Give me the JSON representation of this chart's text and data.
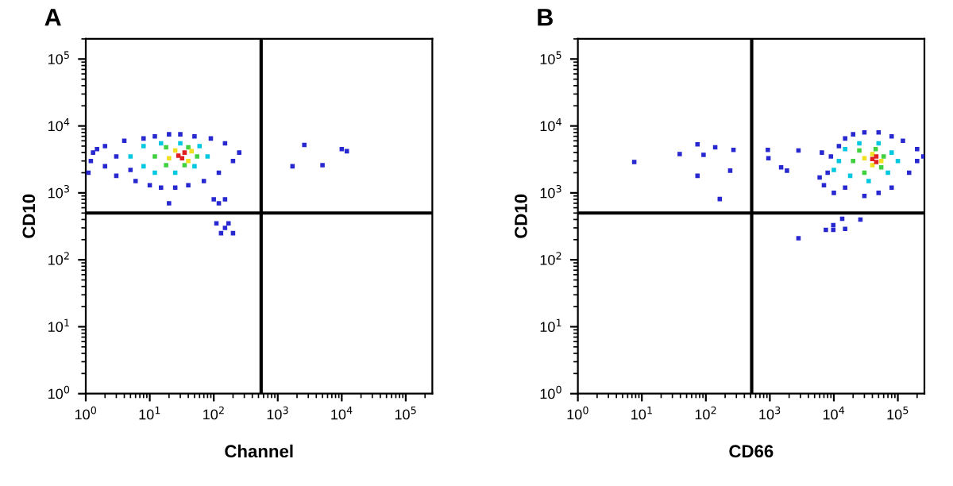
{
  "chart_data": [
    {
      "type": "scatter",
      "title": "A",
      "xlabel": "Channel",
      "ylabel": "CD10",
      "log": "xy",
      "marker": "square",
      "grid": false,
      "legend": false,
      "xlim": [
        1,
        260000
      ],
      "ylim": [
        1,
        200000
      ],
      "xticks": [
        {
          "value": 1,
          "label": "10$^{0}$"
        },
        {
          "value": 10,
          "label": "10$^{1}$"
        },
        {
          "value": 100,
          "label": "10$^{2}$"
        },
        {
          "value": 1000,
          "label": "10$^{3}$"
        },
        {
          "value": 10000,
          "label": "10$^{4}$"
        },
        {
          "value": 100000,
          "label": "10$^{5}$"
        }
      ],
      "yticks": [
        {
          "value": 1,
          "label": "10$^{0}$"
        },
        {
          "value": 10,
          "label": "10$^{1}$"
        },
        {
          "value": 100,
          "label": "10$^{2}$"
        },
        {
          "value": 1000,
          "label": "10$^{3}$"
        },
        {
          "value": 10000,
          "label": "10$^{4}$"
        },
        {
          "value": 100000,
          "label": "10$^{5}$"
        }
      ],
      "ref_lines": [
        {
          "axis": "x",
          "value": 550,
          "color": "#000000"
        },
        {
          "axis": "y",
          "value": 500,
          "color": "#000000"
        }
      ],
      "series": [
        {
          "color": "#2828d0",
          "x": [
            1.2,
            1.5,
            2,
            2,
            3,
            3,
            4,
            5,
            6,
            8,
            10,
            12,
            15,
            20,
            25,
            30,
            40,
            50,
            70,
            90,
            120,
            150,
            200,
            250,
            100,
            120,
            150,
            110,
            130,
            150,
            200,
            170,
            20,
            1.1,
            1.3,
            1700,
            2600,
            5000,
            10000,
            12000
          ],
          "values": [
            3000,
            4500,
            2500,
            5000,
            3500,
            1800,
            6000,
            2200,
            1500,
            6500,
            1300,
            7000,
            1200,
            7500,
            1200,
            7500,
            1300,
            7000,
            1500,
            6500,
            2000,
            5500,
            3000,
            4000,
            800,
            700,
            800,
            350,
            250,
            300,
            250,
            350,
            700,
            2000,
            4000,
            2500,
            5200,
            2600,
            4500,
            4200
          ]
        },
        {
          "color": "#00c8e0",
          "x": [
            5,
            8,
            8,
            12,
            15,
            25,
            30,
            50,
            60,
            80
          ],
          "values": [
            3500,
            2500,
            5000,
            2000,
            5500,
            2000,
            5500,
            2500,
            5000,
            3500
          ]
        },
        {
          "color": "#40d040",
          "x": [
            12,
            18,
            18,
            35,
            40,
            55
          ],
          "values": [
            3500,
            2600,
            4800,
            2600,
            4800,
            3500
          ]
        },
        {
          "color": "#f0e020",
          "x": [
            20,
            25,
            40,
            45
          ],
          "values": [
            3300,
            4300,
            3000,
            4200
          ]
        },
        {
          "color": "#e02020",
          "x": [
            28,
            35,
            32
          ],
          "values": [
            3600,
            4000,
            3300
          ]
        }
      ]
    },
    {
      "type": "scatter",
      "title": "B",
      "xlabel": "CD66",
      "ylabel": "CD10",
      "log": "xy",
      "marker": "square",
      "grid": false,
      "legend": false,
      "xlim": [
        1,
        260000
      ],
      "ylim": [
        1,
        200000
      ],
      "xticks": [
        {
          "value": 1,
          "label": "10$^{0}$"
        },
        {
          "value": 10,
          "label": "10$^{1}$"
        },
        {
          "value": 100,
          "label": "10$^{2}$"
        },
        {
          "value": 1000,
          "label": "10$^{3}$"
        },
        {
          "value": 10000,
          "label": "10$^{4}$"
        },
        {
          "value": 100000,
          "label": "10$^{5}$"
        }
      ],
      "yticks": [
        {
          "value": 1,
          "label": "10$^{0}$"
        },
        {
          "value": 10,
          "label": "10$^{1}$"
        },
        {
          "value": 100,
          "label": "10$^{2}$"
        },
        {
          "value": 1000,
          "label": "10$^{3}$"
        },
        {
          "value": 10000,
          "label": "10$^{4}$"
        },
        {
          "value": 100000,
          "label": "10$^{5}$"
        }
      ],
      "ref_lines": [
        {
          "axis": "x",
          "value": 520,
          "color": "#000000"
        },
        {
          "axis": "y",
          "value": 500,
          "color": "#000000"
        }
      ],
      "series": [
        {
          "color": "#2828d0",
          "x": [
            8000,
            7000,
            9000,
            10000,
            12000,
            15000,
            15000,
            20000,
            30000,
            30000,
            50000,
            50000,
            80000,
            80000,
            120000,
            150000,
            200000,
            200000,
            250000,
            6000,
            6500,
            7.6,
            39,
            74,
            74,
            92,
            140,
            240,
            270,
            165,
            930,
            950,
            1500,
            1850,
            2800,
            2800,
            7500,
            9800,
            15000,
            26000,
            13500,
            9800
          ],
          "values": [
            2000,
            1300,
            3500,
            1000,
            5000,
            6500,
            1200,
            7500,
            8000,
            900,
            8000,
            1000,
            7000,
            1200,
            6000,
            2000,
            4500,
            3000,
            3500,
            1700,
            4000,
            2900,
            3800,
            5300,
            1800,
            3700,
            4800,
            2150,
            4400,
            810,
            4400,
            3300,
            2400,
            2150,
            4300,
            210,
            280,
            330,
            290,
            400,
            410,
            280
          ]
        },
        {
          "color": "#00c8e0",
          "x": [
            12000,
            15000,
            18000,
            25000,
            35000,
            50000,
            70000,
            80000,
            100000,
            10000
          ],
          "values": [
            3000,
            4500,
            1800,
            5500,
            1500,
            5500,
            2000,
            4000,
            3000,
            2200
          ]
        },
        {
          "color": "#40d040",
          "x": [
            20000,
            25000,
            30000,
            45000,
            55000,
            60000
          ],
          "values": [
            3000,
            4300,
            2000,
            4500,
            2400,
            3500
          ]
        },
        {
          "color": "#f0e020",
          "x": [
            30000,
            40000,
            40000,
            55000
          ],
          "values": [
            3300,
            2600,
            3800,
            3000
          ]
        },
        {
          "color": "#e02020",
          "x": [
            40000,
            46000,
            46000
          ],
          "values": [
            3200,
            3500,
            2900
          ]
        }
      ]
    }
  ]
}
